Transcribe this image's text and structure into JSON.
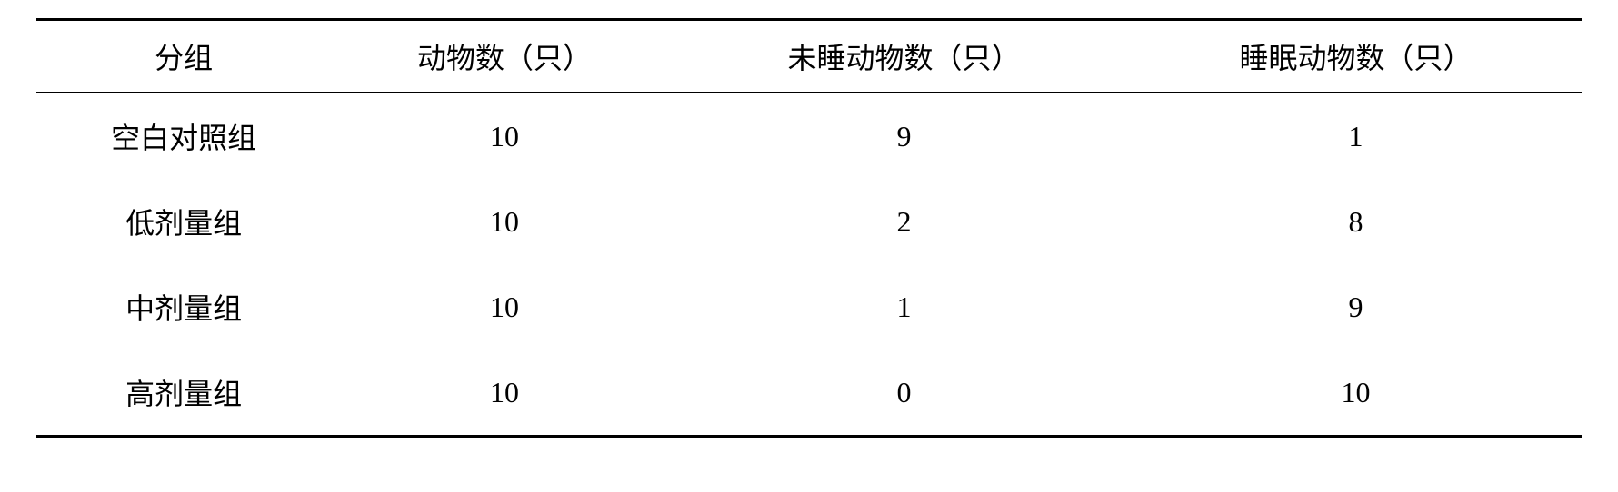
{
  "table": {
    "type": "table",
    "columns": [
      {
        "label": "分组",
        "align": "center"
      },
      {
        "label": "动物数（只）",
        "align": "center"
      },
      {
        "label": "未睡动物数（只）",
        "align": "center"
      },
      {
        "label": "睡眠动物数（只）",
        "align": "center"
      }
    ],
    "rows": [
      {
        "group": "空白对照组",
        "animal_count": "10",
        "awake_count": "9",
        "sleep_count": "1"
      },
      {
        "group": "低剂量组",
        "animal_count": "10",
        "awake_count": "2",
        "sleep_count": "8"
      },
      {
        "group": "中剂量组",
        "animal_count": "10",
        "awake_count": "1",
        "sleep_count": "9"
      },
      {
        "group": "高剂量组",
        "animal_count": "10",
        "awake_count": "0",
        "sleep_count": "10"
      }
    ],
    "styling": {
      "background_color": "#ffffff",
      "text_color": "#000000",
      "border_color": "#000000",
      "top_border_width": 3,
      "header_border_width": 2,
      "bottom_border_width": 3,
      "font_family": "SimSun",
      "body_fontsize": 32,
      "header_fontsize": 32,
      "cell_padding_vertical": 24,
      "header_padding_vertical": 16
    }
  }
}
